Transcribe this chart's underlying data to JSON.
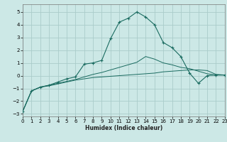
{
  "xlabel": "Humidex (Indice chaleur)",
  "background_color": "#cce8e6",
  "grid_color": "#aaccca",
  "line_color": "#1a6b60",
  "xlim": [
    0,
    23
  ],
  "ylim": [
    -3.2,
    5.6
  ],
  "xticks": [
    0,
    1,
    2,
    3,
    4,
    5,
    6,
    7,
    8,
    9,
    10,
    11,
    12,
    13,
    14,
    15,
    16,
    17,
    18,
    19,
    20,
    21,
    22,
    23
  ],
  "yticks": [
    -3,
    -2,
    -1,
    0,
    1,
    2,
    3,
    4,
    5
  ],
  "series": [
    {
      "x": [
        0,
        1,
        2,
        3,
        4,
        5,
        6,
        7,
        8,
        9,
        10,
        11,
        12,
        13,
        14,
        15,
        16,
        17,
        18,
        19,
        20,
        21,
        22,
        23
      ],
      "y": [
        -2.8,
        -1.2,
        -0.9,
        -0.8,
        -0.65,
        -0.5,
        -0.35,
        -0.25,
        -0.15,
        -0.1,
        -0.05,
        0.0,
        0.05,
        0.1,
        0.15,
        0.2,
        0.3,
        0.35,
        0.4,
        0.45,
        0.45,
        0.4,
        0.1,
        0.05
      ],
      "marker": false
    },
    {
      "x": [
        0,
        1,
        2,
        3,
        4,
        5,
        6,
        7,
        8,
        9,
        10,
        11,
        12,
        13,
        14,
        15,
        16,
        17,
        18,
        19,
        20,
        21,
        22,
        23
      ],
      "y": [
        -2.8,
        -1.2,
        -0.9,
        -0.75,
        -0.6,
        -0.45,
        -0.3,
        -0.1,
        0.1,
        0.25,
        0.45,
        0.65,
        0.85,
        1.05,
        1.5,
        1.3,
        1.0,
        0.85,
        0.65,
        0.55,
        0.35,
        0.15,
        0.05,
        0.05
      ],
      "marker": false
    },
    {
      "x": [
        0,
        1,
        2,
        3,
        4,
        5,
        6,
        7,
        8,
        9,
        10,
        11,
        12,
        13,
        14,
        15,
        16,
        17,
        18,
        19,
        20,
        21,
        22,
        23
      ],
      "y": [
        -2.8,
        -1.2,
        -0.9,
        -0.75,
        -0.5,
        -0.25,
        -0.1,
        0.9,
        1.0,
        1.2,
        2.9,
        4.2,
        4.5,
        5.0,
        4.6,
        4.0,
        2.6,
        2.2,
        1.5,
        0.2,
        -0.6,
        0.0,
        0.05,
        0.05
      ],
      "marker": true
    }
  ]
}
